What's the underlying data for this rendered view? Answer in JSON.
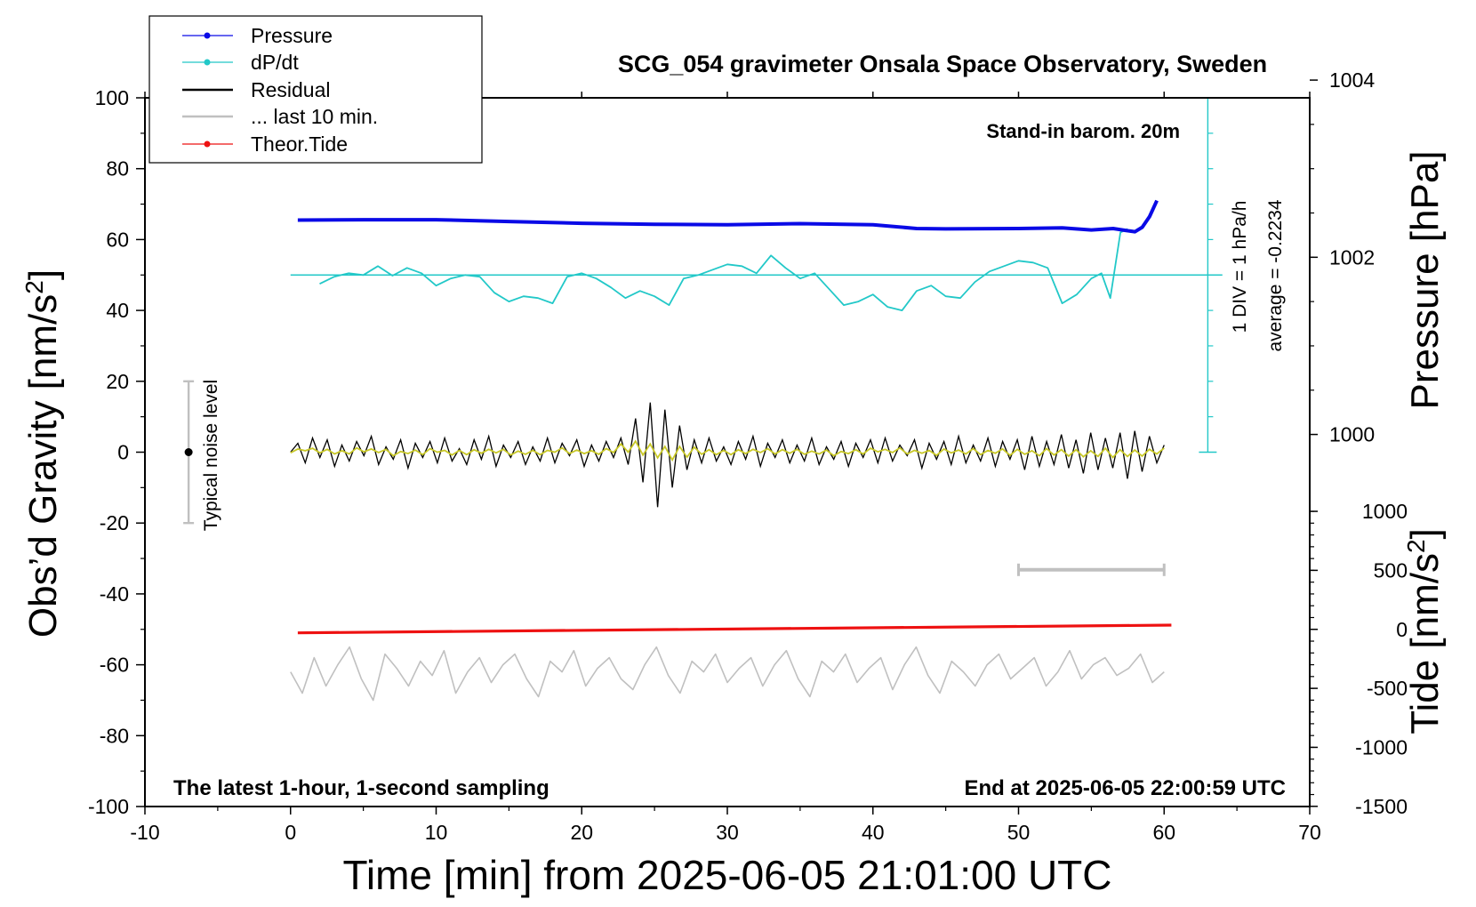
{
  "chart_data": {
    "type": "line",
    "title": "SCG_054 gravimeter Onsala Space Observatory, Sweden",
    "xlabel": "Time [min] from 2025-06-05 21:01:00 UTC",
    "ylabel_left": "Obs’d Gravity [nm/s²]",
    "ylabel_pressure": "Pressure [hPa]",
    "ylabel_tide": "Tide [nm/s²]",
    "xlim": [
      -10,
      70
    ],
    "ylim": [
      -100,
      100
    ],
    "x_ticks": [
      "-10",
      "0",
      "10",
      "20",
      "30",
      "40",
      "50",
      "60",
      "70"
    ],
    "y_ticks": [
      "100",
      "80",
      "60",
      "40",
      "20",
      "0",
      "-20",
      "-40",
      "-60",
      "-80",
      "-100"
    ],
    "pressure_ticks": [
      "1004",
      "1002",
      "1000"
    ],
    "tide_ticks": [
      "1000",
      "500",
      "0",
      "-500",
      "-1000",
      "-1500"
    ],
    "grid": false,
    "legend_placement": "top-left",
    "legend": [
      "Pressure",
      "dP/dt",
      "Residual",
      "... last 10 min.",
      "Theor.Tide"
    ],
    "annotations": {
      "barometer": "Stand-in barom. 20m",
      "dpdt_scale": "1 DIV = 1 hPa/h",
      "dpdt_average": "average = -0.2234",
      "noise": "Typical noise level",
      "sampling": "The latest 1-hour, 1-second sampling",
      "end_time": "End at 2025-06-05 22:00:59 UTC"
    },
    "colors": {
      "pressure": "#0a0ae6",
      "dpdt": "#22c8c8",
      "residual": "#000000",
      "smooth": "#c8c828",
      "last10": "#c0c0c0",
      "tide": "#ee1111"
    },
    "series": [
      {
        "name": "Pressure",
        "plotted_on": "left axis",
        "x": [
          0.5,
          5,
          10,
          15,
          20,
          25,
          30,
          35,
          40,
          43,
          45,
          50,
          53,
          55,
          56.5,
          57.3,
          58,
          58.5,
          59,
          59.5
        ],
        "values": [
          65.5,
          65.6,
          65.6,
          65.1,
          64.6,
          64.3,
          64.2,
          64.5,
          64.2,
          63.1,
          63.0,
          63.1,
          63.3,
          62.7,
          63.1,
          62.6,
          62.2,
          63.5,
          66.5,
          71
        ]
      },
      {
        "name": "dP/dt",
        "plotted_on": "left axis",
        "x": [
          2,
          3,
          4,
          5,
          6,
          7,
          8,
          9,
          10,
          11,
          12,
          13,
          14,
          15,
          16,
          17,
          18,
          19,
          20,
          21,
          22,
          23,
          24,
          25,
          26,
          27,
          28,
          29,
          30,
          31,
          32,
          33,
          34,
          35,
          36,
          37,
          38,
          39,
          40,
          41,
          42,
          43,
          44,
          45,
          46,
          47,
          48,
          49,
          50,
          51,
          52,
          53,
          54,
          55,
          55.7,
          56.3,
          57,
          57.5
        ],
        "values": [
          47.5,
          49.5,
          50.5,
          50.0,
          52.5,
          49.8,
          52.0,
          50.5,
          47.0,
          49.0,
          50.0,
          49.5,
          45.0,
          42.5,
          44.0,
          43.5,
          42.0,
          49.5,
          50.5,
          49.0,
          46.5,
          43.5,
          45.5,
          44.0,
          41.5,
          49.0,
          50.0,
          51.5,
          53.0,
          52.5,
          50.5,
          55.5,
          52.0,
          49.0,
          50.5,
          46.0,
          41.5,
          42.5,
          44.5,
          41.0,
          40.0,
          45.5,
          47.0,
          44.0,
          43.5,
          48.0,
          51.0,
          52.5,
          54.0,
          53.5,
          52.0,
          42.0,
          44.5,
          49.0,
          50.5,
          43.5,
          62.0,
          63.0
        ]
      },
      {
        "name": "Residual",
        "plotted_on": "left axis",
        "x_range": [
          0,
          60
        ],
        "values": [
          0.0,
          2.5,
          -3.0,
          4.0,
          -1.5,
          3.5,
          -4.0,
          2.0,
          -2.5,
          3.0,
          -1.0,
          4.5,
          -3.5,
          1.5,
          -2.0,
          3.5,
          -4.5,
          2.5,
          -1.5,
          3.0,
          -3.0,
          4.0,
          -2.5,
          1.0,
          -3.5,
          3.5,
          -2.0,
          4.5,
          -4.0,
          2.0,
          -1.5,
          3.0,
          -3.5,
          1.5,
          -2.5,
          4.0,
          -3.0,
          2.5,
          -1.0,
          3.5,
          -4.0,
          2.0,
          -2.5,
          3.0,
          -1.5,
          4.0,
          -3.5,
          9.5,
          -8.5,
          14.0,
          -15.5,
          12.0,
          -10.0,
          7.5,
          -5.0,
          3.5,
          -3.0,
          4.0,
          -2.5,
          1.5,
          -3.5,
          3.0,
          -2.0,
          4.5,
          -4.0,
          2.5,
          -1.5,
          3.5,
          -3.0,
          2.0,
          -2.5,
          4.0,
          -3.5,
          1.5,
          -2.0,
          3.0,
          -4.0,
          2.5,
          -1.5,
          3.5,
          -3.0,
          4.0,
          -2.5,
          2.0,
          -1.0,
          3.5,
          -4.5,
          2.5,
          -2.0,
          3.0,
          -3.5,
          4.5,
          -3.0,
          2.0,
          -2.5,
          4.0,
          -4.0,
          3.0,
          -2.0,
          3.5,
          -5.0,
          4.5,
          -4.0,
          3.0,
          -3.5,
          5.0,
          -4.5,
          3.5,
          -6.0,
          5.5,
          -5.0,
          4.0,
          -4.5,
          5.5,
          -7.5,
          6.0,
          -5.5,
          4.5,
          -3.0,
          2.0
        ]
      },
      {
        "name": "... last 10 min.",
        "plotted_on": "left axis",
        "x_range": [
          0,
          60
        ],
        "values": [
          -62.0,
          -68.0,
          -58.0,
          -66.0,
          -60.0,
          -55.0,
          -64.0,
          -70.0,
          -57.0,
          -61.0,
          -66.0,
          -59.0,
          -63.0,
          -56.0,
          -68.0,
          -62.0,
          -58.0,
          -65.0,
          -60.0,
          -57.0,
          -64.0,
          -69.0,
          -59.0,
          -62.0,
          -56.0,
          -66.0,
          -61.0,
          -58.0,
          -64.0,
          -67.0,
          -60.0,
          -55.0,
          -63.0,
          -68.0,
          -59.0,
          -62.0,
          -57.0,
          -65.0,
          -61.0,
          -58.0,
          -66.0,
          -60.0,
          -56.0,
          -64.0,
          -69.0,
          -59.0,
          -62.0,
          -57.0,
          -65.0,
          -61.0,
          -58.0,
          -67.0,
          -60.0,
          -55.0,
          -63.0,
          -68.0,
          -59.0,
          -62.0,
          -66.0,
          -60.0,
          -57.0,
          -64.0,
          -61.0,
          -58.0,
          -66.0,
          -62.0,
          -56.0,
          -64.0,
          -60.0,
          -58.0,
          -63.0,
          -61.0,
          -57.0,
          -65.0,
          -62.0
        ]
      },
      {
        "name": "Theor.Tide",
        "plotted_on": "left axis",
        "x": [
          0.5,
          60.5
        ],
        "values": [
          -51.0,
          -48.8
        ]
      }
    ]
  }
}
